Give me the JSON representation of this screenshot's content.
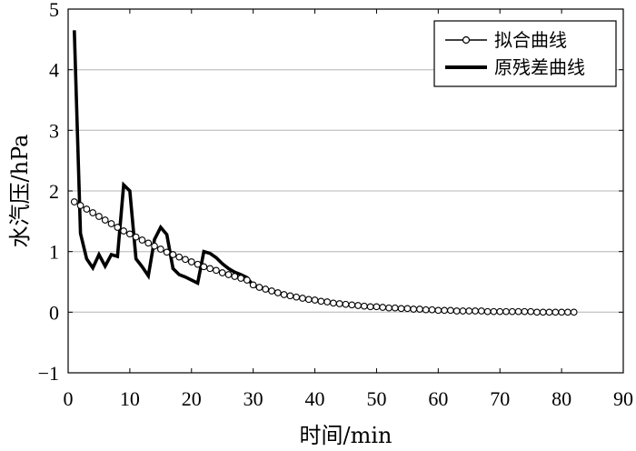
{
  "chart_data": {
    "type": "line",
    "xlabel": "时间/min",
    "ylabel": "水汽压/hPa",
    "xlim": [
      0,
      90
    ],
    "ylim": [
      -1,
      5
    ],
    "xticks": [
      0,
      10,
      20,
      30,
      40,
      50,
      60,
      70,
      80,
      90
    ],
    "yticks": [
      -1,
      0,
      1,
      2,
      3,
      4,
      5
    ],
    "grid": "horizontal",
    "legend_position": "top-right",
    "colors": {
      "line": "#000000",
      "grid": "#c8c8c8",
      "marker_fill": "#ffffff"
    },
    "series": [
      {
        "name": "拟合曲线",
        "style": "thin-line-circle-markers",
        "x": [
          1,
          2,
          3,
          4,
          5,
          6,
          7,
          8,
          9,
          10,
          11,
          12,
          13,
          14,
          15,
          16,
          17,
          18,
          19,
          20,
          21,
          22,
          23,
          24,
          25,
          26,
          27,
          28,
          29,
          30,
          31,
          32,
          33,
          34,
          35,
          36,
          37,
          38,
          39,
          40,
          41,
          42,
          43,
          44,
          45,
          46,
          47,
          48,
          49,
          50,
          51,
          52,
          53,
          54,
          55,
          56,
          57,
          58,
          59,
          60,
          61,
          62,
          63,
          64,
          65,
          66,
          67,
          68,
          69,
          70,
          71,
          72,
          73,
          74,
          75,
          76,
          77,
          78,
          79,
          80,
          81,
          82
        ],
        "values": [
          1.82,
          1.76,
          1.7,
          1.64,
          1.58,
          1.52,
          1.46,
          1.4,
          1.34,
          1.29,
          1.24,
          1.19,
          1.14,
          1.09,
          1.04,
          0.99,
          0.95,
          0.91,
          0.87,
          0.83,
          0.79,
          0.75,
          0.72,
          0.69,
          0.65,
          0.62,
          0.59,
          0.56,
          0.53,
          0.45,
          0.41,
          0.38,
          0.35,
          0.32,
          0.29,
          0.27,
          0.25,
          0.23,
          0.21,
          0.2,
          0.18,
          0.17,
          0.15,
          0.14,
          0.13,
          0.12,
          0.11,
          0.1,
          0.09,
          0.09,
          0.08,
          0.07,
          0.07,
          0.06,
          0.06,
          0.05,
          0.05,
          0.04,
          0.04,
          0.03,
          0.03,
          0.03,
          0.02,
          0.02,
          0.02,
          0.02,
          0.02,
          0.01,
          0.01,
          0.01,
          0.01,
          0.01,
          0.01,
          0.01,
          0.01,
          0.0,
          0.0,
          0.0,
          0.0,
          0.0,
          0.0,
          0.0
        ]
      },
      {
        "name": "原残差曲线",
        "style": "thick-line",
        "x": [
          1,
          2,
          3,
          4,
          5,
          6,
          7,
          8,
          9,
          10,
          11,
          12,
          13,
          14,
          15,
          16,
          17,
          18,
          19,
          20,
          21,
          22,
          23,
          24,
          25,
          26,
          27,
          28,
          29,
          30,
          31,
          32,
          33,
          34,
          35,
          36,
          37,
          38,
          39,
          40,
          41,
          42,
          43,
          44,
          45,
          46,
          47,
          48,
          49,
          50,
          51,
          52,
          53,
          54,
          55,
          56,
          57,
          58,
          59,
          60,
          61,
          62,
          63,
          64,
          65,
          66,
          67,
          68,
          69,
          70,
          71,
          72,
          73,
          74,
          75,
          76,
          77,
          78,
          79,
          80,
          81,
          82
        ],
        "values": [
          4.65,
          1.3,
          0.88,
          0.73,
          0.95,
          0.76,
          0.95,
          0.92,
          2.1,
          2.0,
          0.88,
          0.75,
          0.6,
          1.2,
          1.4,
          1.28,
          0.72,
          0.62,
          0.58,
          0.53,
          0.48,
          1.0,
          0.97,
          0.9,
          0.8,
          0.72,
          0.66,
          0.62,
          0.57,
          0.44,
          0.41,
          0.38,
          0.35,
          0.32,
          0.29,
          0.27,
          0.25,
          0.23,
          0.21,
          0.2,
          0.18,
          0.17,
          0.15,
          0.14,
          0.13,
          0.12,
          0.11,
          0.1,
          0.09,
          0.09,
          0.08,
          0.07,
          0.07,
          0.06,
          0.06,
          0.05,
          0.05,
          0.04,
          0.04,
          0.03,
          0.03,
          0.03,
          0.02,
          0.02,
          0.02,
          0.02,
          0.02,
          0.01,
          0.01,
          0.01,
          0.01,
          0.01,
          0.01,
          0.01,
          0.01,
          0.0,
          0.0,
          0.0,
          0.0,
          0.0,
          0.0,
          0.0
        ]
      }
    ]
  }
}
